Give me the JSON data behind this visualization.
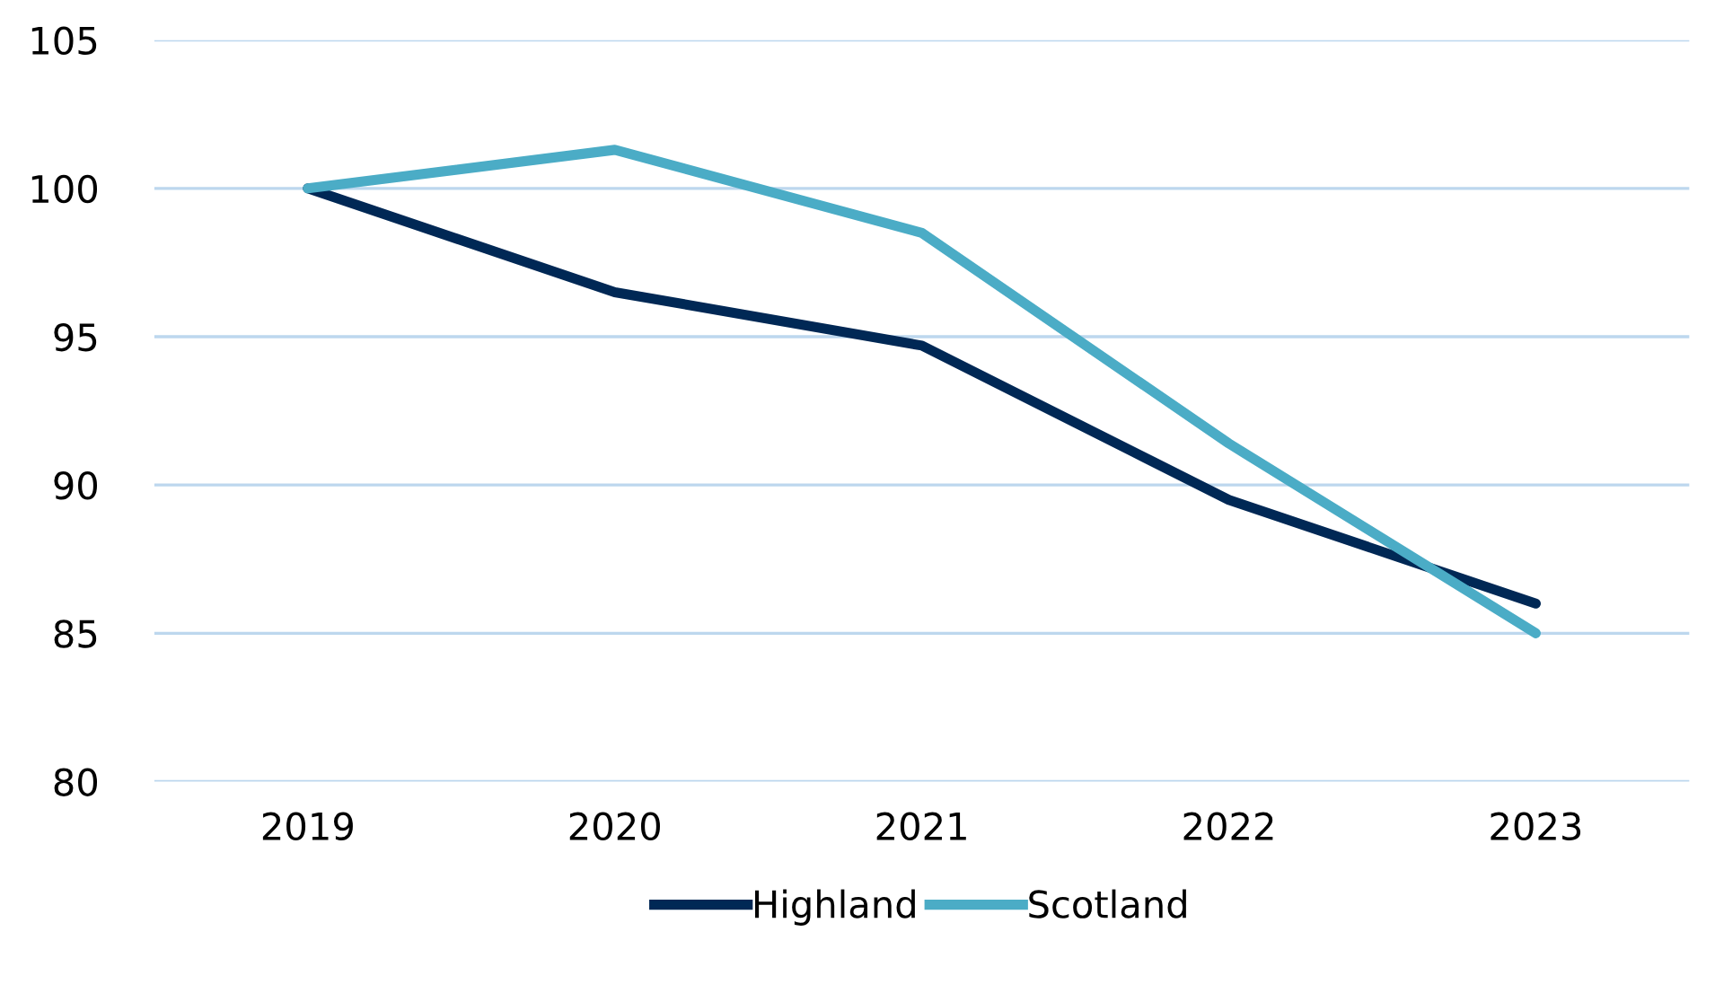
{
  "chart_data": {
    "type": "line",
    "categories": [
      "2019",
      "2020",
      "2021",
      "2022",
      "2023"
    ],
    "series": [
      {
        "name": "Highland",
        "color": "#002855",
        "values": [
          100,
          96.5,
          94.7,
          89.5,
          86.0
        ]
      },
      {
        "name": "Scotland",
        "color": "#4bacc6",
        "values": [
          100,
          101.3,
          98.5,
          91.4,
          85.0
        ]
      }
    ],
    "ylim": [
      80,
      105
    ],
    "yticks": [
      80,
      85,
      90,
      95,
      100,
      105
    ],
    "grid": "y",
    "legend": "bottom",
    "marker": "none",
    "line_style": "solid"
  }
}
